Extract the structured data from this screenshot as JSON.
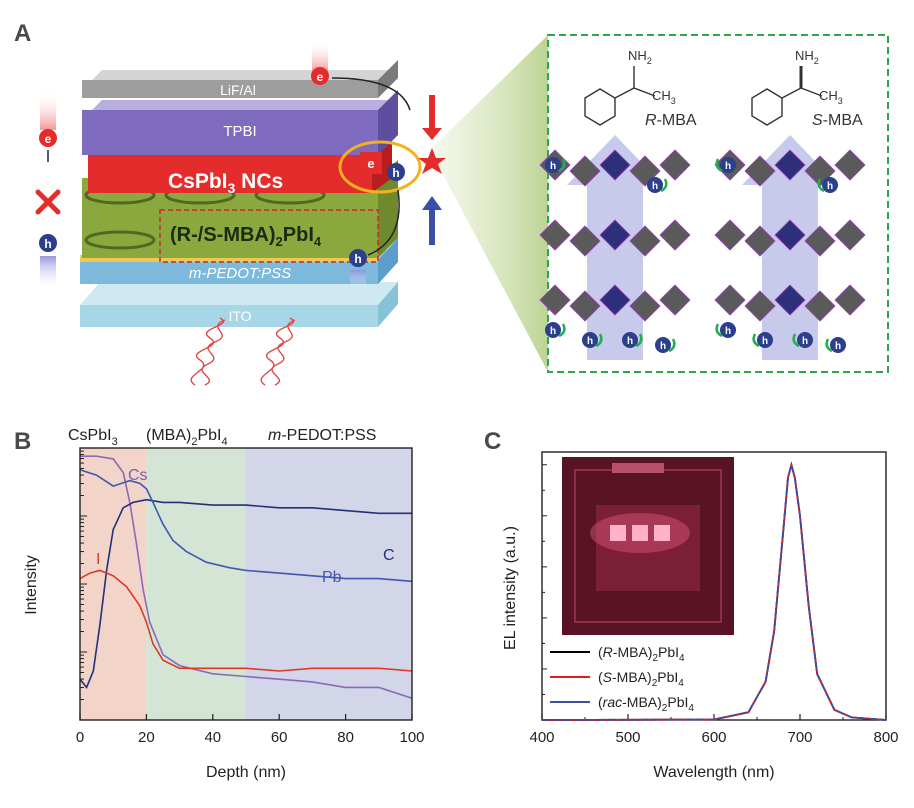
{
  "panels": {
    "a": {
      "letter": "A",
      "layers": [
        "LiF/Al",
        "TPBI",
        "CsPbI",
        "(R-/S-MBA)",
        "m-PEDOT:PSS",
        "ITO"
      ],
      "layer_suffix": {
        "cspbi_sub": "3",
        "cspbi_rest": " NCs",
        "mba_sub": "2",
        "mba_rest": "PbI",
        "mba_sub2": "4"
      },
      "carriers": {
        "e": "e",
        "h": "h"
      },
      "molecules": [
        {
          "formula_top": "NH",
          "formula_top_sub": "2",
          "formula_side": "CH",
          "formula_side_sub": "3",
          "prefix": "R",
          "name": "-MBA"
        },
        {
          "formula_top": "NH",
          "formula_top_sub": "2",
          "formula_side": "CH",
          "formula_side_sub": "3",
          "prefix": "S",
          "name": "-MBA"
        }
      ],
      "colors": {
        "electron": "#d7262b",
        "hole": "#2b3f8c",
        "spin_arrow": "#1faf50",
        "box_border": "#2aa84a"
      }
    },
    "b": {
      "letter": "B",
      "region_labels": {
        "r1": "CsPbI",
        "r1_sub": "3",
        "r2a": "(MBA)",
        "r2_sub": "2",
        "r2b": "PbI",
        "r2_sub2": "4",
        "r3a": "m",
        "r3b": "-PEDOT:PSS"
      },
      "curve_labels": {
        "cs": "Cs",
        "c": "C",
        "pb": "Pb",
        "i": "I"
      },
      "colors": {
        "region1": "#f2d5c8",
        "region2": "#d5e5d5",
        "region3": "#d3d5e8"
      }
    },
    "c": {
      "letter": "C",
      "colors": {
        "r": "#000000",
        "s": "#e41a1c",
        "rac": "#3b4fa8"
      }
    }
  },
  "chart_data": [
    {
      "type": "line",
      "title": "",
      "xlabel": "Depth (nm)",
      "ylabel": "Intensity",
      "xlim": [
        0,
        100
      ],
      "x_ticks": [
        "0",
        "20",
        "40",
        "60",
        "80",
        "100"
      ],
      "y_scale": "log",
      "regions": [
        [
          0,
          20
        ],
        [
          20,
          50
        ],
        [
          50,
          100
        ]
      ],
      "series": [
        {
          "name": "Cs",
          "color": "#8a6ab8",
          "x": [
            0,
            5,
            10,
            13,
            15,
            17,
            19,
            21,
            25,
            30,
            40,
            50,
            60,
            70,
            80,
            90,
            100
          ],
          "y": [
            0.97,
            0.97,
            0.96,
            0.91,
            0.8,
            0.65,
            0.48,
            0.36,
            0.24,
            0.2,
            0.17,
            0.16,
            0.15,
            0.14,
            0.12,
            0.12,
            0.08
          ]
        },
        {
          "name": "C",
          "color": "#23307a",
          "x": [
            0,
            2,
            4,
            6,
            8,
            10,
            13,
            16,
            20,
            25,
            30,
            40,
            50,
            60,
            70,
            80,
            90,
            100
          ],
          "y": [
            0.15,
            0.12,
            0.18,
            0.35,
            0.55,
            0.7,
            0.78,
            0.8,
            0.81,
            0.8,
            0.8,
            0.79,
            0.79,
            0.78,
            0.78,
            0.77,
            0.76,
            0.76
          ]
        },
        {
          "name": "Pb",
          "color": "#3f58b0",
          "x": [
            0,
            5,
            10,
            15,
            18,
            20,
            22,
            25,
            28,
            32,
            38,
            45,
            50,
            60,
            70,
            80,
            90,
            100
          ],
          "y": [
            0.92,
            0.9,
            0.86,
            0.88,
            0.87,
            0.85,
            0.8,
            0.72,
            0.66,
            0.62,
            0.58,
            0.56,
            0.55,
            0.54,
            0.53,
            0.52,
            0.52,
            0.51
          ]
        },
        {
          "name": "I",
          "color": "#d93a2b",
          "x": [
            0,
            3,
            6,
            10,
            14,
            18,
            20,
            22,
            25,
            30,
            40,
            50,
            60,
            70,
            80,
            90,
            100
          ],
          "y": [
            0.52,
            0.54,
            0.55,
            0.53,
            0.49,
            0.42,
            0.36,
            0.28,
            0.22,
            0.19,
            0.19,
            0.19,
            0.18,
            0.19,
            0.19,
            0.19,
            0.18
          ]
        }
      ]
    },
    {
      "type": "line",
      "title": "",
      "xlabel": "Wavelength (nm)",
      "ylabel": "EL intensity (a.u.)",
      "xlim": [
        400,
        800
      ],
      "x_ticks": [
        "400",
        "500",
        "600",
        "700",
        "800"
      ],
      "ylim": [
        0,
        1.05
      ],
      "legend_position": "bottom-left",
      "inset": "photo of red-emitting device",
      "series": [
        {
          "name_pre": "(",
          "name_italic": "R",
          "name_post": "-MBA)",
          "name_sub": "2",
          "name_tail": "PbI",
          "name_sub2": "4",
          "color": "#000000",
          "x": [
            400,
            600,
            640,
            660,
            670,
            680,
            686,
            690,
            694,
            700,
            710,
            720,
            740,
            760,
            800
          ],
          "y": [
            0,
            0.002,
            0.03,
            0.15,
            0.35,
            0.72,
            0.95,
            1.0,
            0.95,
            0.8,
            0.45,
            0.18,
            0.04,
            0.01,
            0
          ]
        },
        {
          "name_pre": "(",
          "name_italic": "S",
          "name_post": "-MBA)",
          "name_sub": "2",
          "name_tail": "PbI",
          "name_sub2": "4",
          "color": "#e41a1c",
          "x": [
            400,
            600,
            640,
            660,
            670,
            680,
            686,
            690,
            694,
            700,
            710,
            720,
            740,
            760,
            800
          ],
          "y": [
            0,
            0.002,
            0.03,
            0.15,
            0.35,
            0.72,
            0.95,
            1.0,
            0.95,
            0.8,
            0.45,
            0.18,
            0.04,
            0.01,
            0
          ]
        },
        {
          "name_pre": "(",
          "name_italic": "rac",
          "name_post": "-MBA)",
          "name_sub": "2",
          "name_tail": "PbI",
          "name_sub2": "4",
          "color": "#3b4fa8",
          "x": [
            400,
            600,
            640,
            660,
            670,
            680,
            686,
            690,
            694,
            700,
            710,
            720,
            740,
            760,
            800
          ],
          "y": [
            0,
            0.002,
            0.03,
            0.15,
            0.35,
            0.72,
            0.95,
            1.0,
            0.95,
            0.8,
            0.45,
            0.18,
            0.04,
            0.01,
            0
          ]
        }
      ]
    }
  ]
}
